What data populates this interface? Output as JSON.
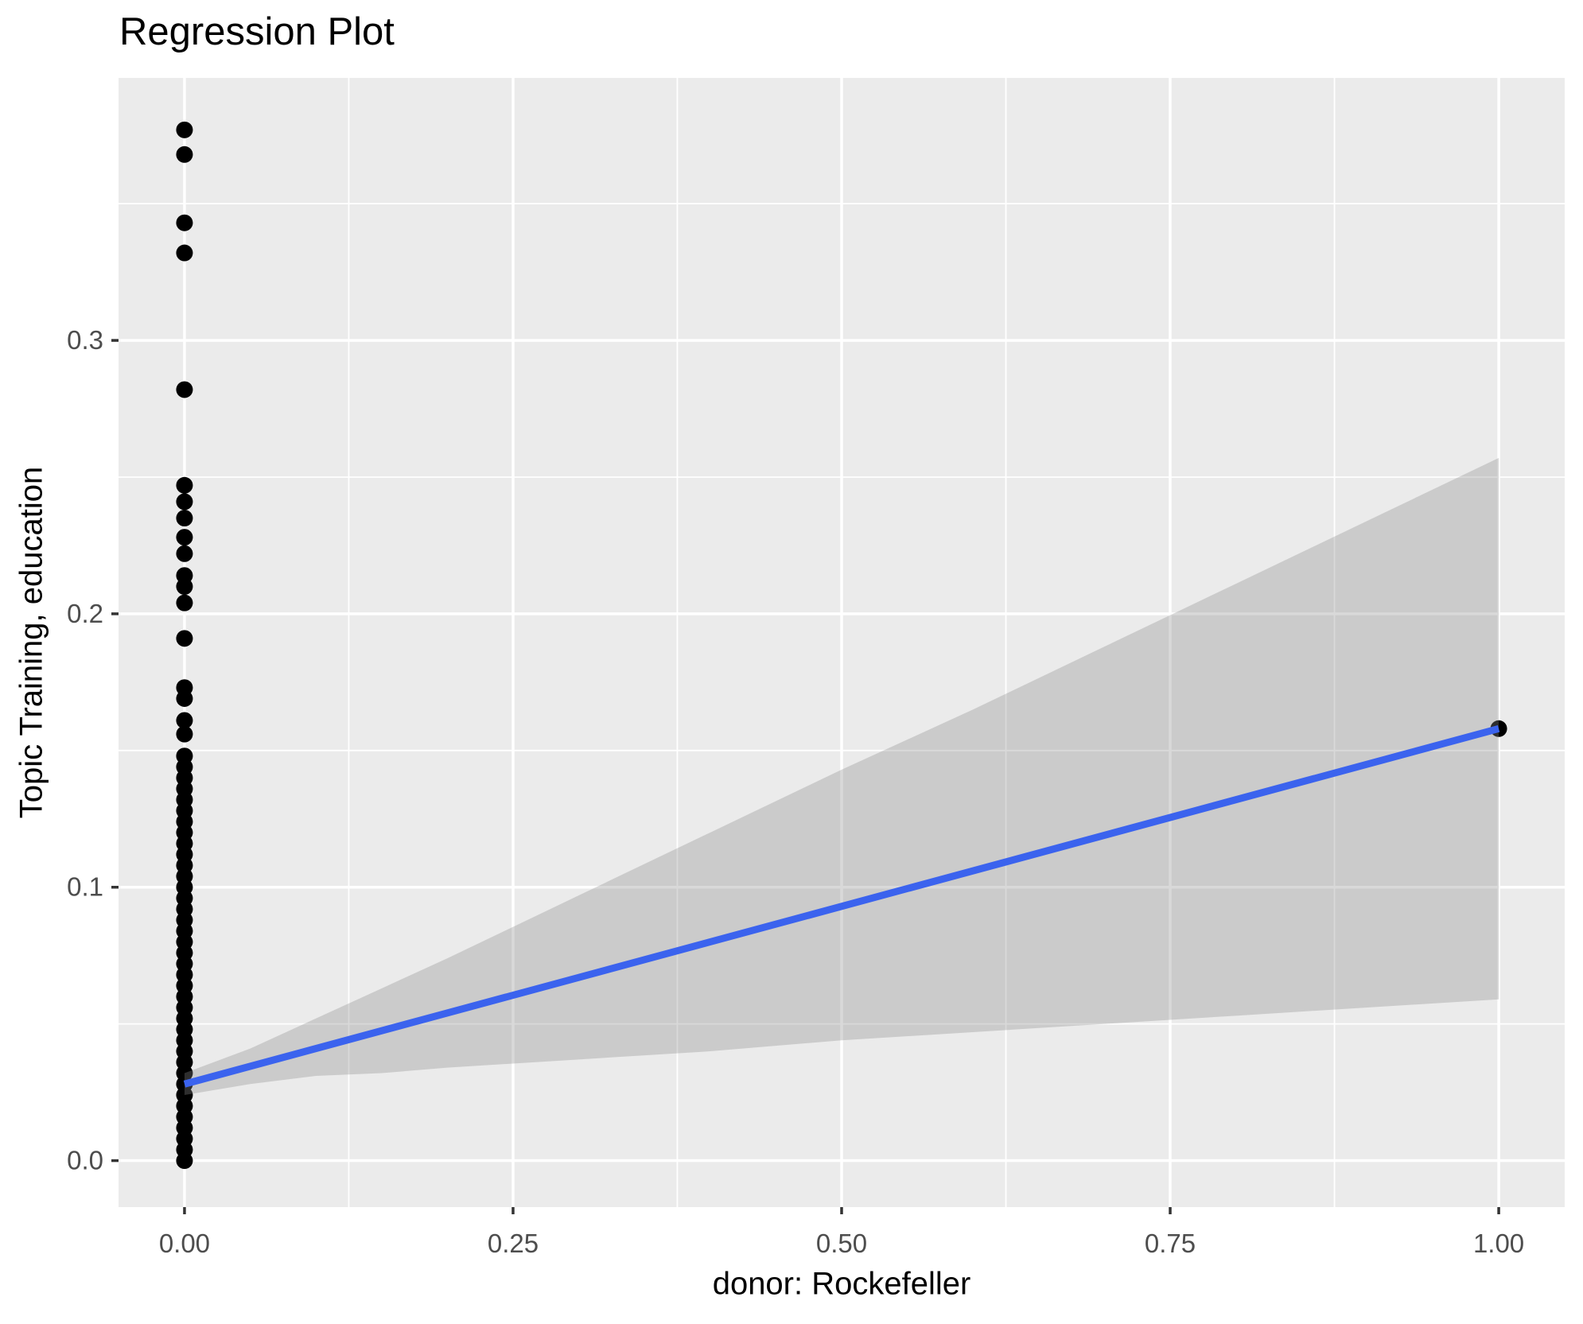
{
  "chart_data": {
    "type": "scatter",
    "title": "Regression Plot",
    "xlabel": "donor: Rockefeller",
    "ylabel": "Topic Training, education",
    "grid": true,
    "legend": false,
    "xlim": [
      -0.0502,
      1.0502
    ],
    "ylim": [
      -0.017,
      0.396
    ],
    "x_ticks": {
      "values": [
        0,
        0.25,
        0.5,
        0.75,
        1
      ],
      "labels": [
        "0.00",
        "0.25",
        "0.50",
        "0.75",
        "1.00"
      ]
    },
    "y_ticks": {
      "values": [
        0,
        0.1,
        0.2,
        0.3
      ],
      "labels": [
        "0.0",
        "0.1",
        "0.2",
        "0.3"
      ]
    },
    "x_minor_gridlines": [
      0.125,
      0.375,
      0.625,
      0.875
    ],
    "y_minor_gridlines": [
      0.05,
      0.15,
      0.25,
      0.35
    ],
    "series": [
      {
        "name": "observations-donor-0",
        "x": 0,
        "y": [
          0.377,
          0.368,
          0.343,
          0.332,
          0.282,
          0.247,
          0.241,
          0.235,
          0.228,
          0.222,
          0.214,
          0.21,
          0.204,
          0.191,
          0.173,
          0.169,
          0.161,
          0.156,
          0.148,
          0.144,
          0.14,
          0.136,
          0.132,
          0.128,
          0.124,
          0.12,
          0.116,
          0.112,
          0.108,
          0.104,
          0.1,
          0.096,
          0.092,
          0.088,
          0.084,
          0.08,
          0.076,
          0.072,
          0.068,
          0.064,
          0.06,
          0.056,
          0.052,
          0.048,
          0.044,
          0.04,
          0.036,
          0.032,
          0.028,
          0.024,
          0.02,
          0.016,
          0.012,
          0.008,
          0.004,
          0.0
        ]
      },
      {
        "name": "observations-donor-1",
        "x": 1,
        "y": [
          0.158
        ]
      }
    ],
    "regression_line": {
      "x": [
        0,
        1
      ],
      "y": [
        0.028,
        0.158
      ]
    },
    "confidence_band": {
      "x": [
        0,
        0.05,
        0.1,
        0.15,
        0.2,
        0.3,
        0.4,
        0.5,
        0.6,
        0.7,
        0.8,
        0.9,
        1
      ],
      "upper": [
        0.032,
        0.041,
        0.052,
        0.063,
        0.074,
        0.097,
        0.12,
        0.143,
        0.165,
        0.188,
        0.211,
        0.234,
        0.257
      ],
      "lower": [
        0.024,
        0.028,
        0.031,
        0.032,
        0.034,
        0.037,
        0.04,
        0.044,
        0.047,
        0.05,
        0.053,
        0.056,
        0.059
      ]
    },
    "colors": {
      "panel_background": "#EBEBEB",
      "gridline": "#FFFFFF",
      "point": "#000000",
      "regression_line": "#3B63EE",
      "confidence_band": "#8C8C8C",
      "confidence_band_opacity": 0.33,
      "tick_label": "#4D4D4D",
      "tick_mark": "#333333",
      "title": "#000000"
    }
  }
}
